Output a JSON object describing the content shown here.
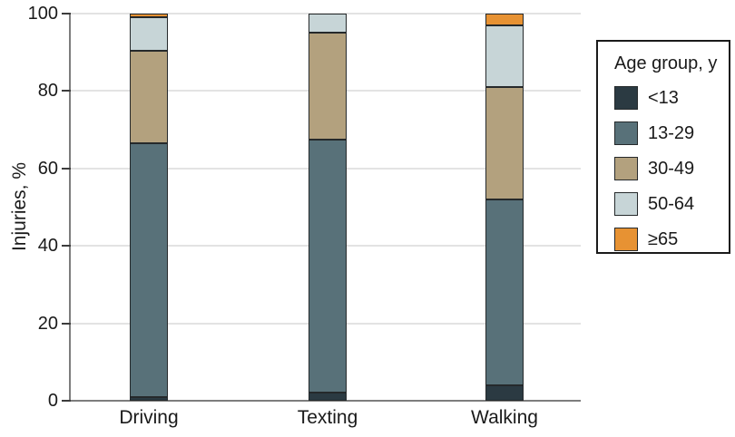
{
  "chart_data": {
    "type": "bar",
    "subtype": "stacked-vertical",
    "title": "",
    "ylabel": "Injuries, %",
    "xlabel": "",
    "ylim": [
      0,
      100
    ],
    "yticks": [
      0,
      20,
      40,
      60,
      80,
      100
    ],
    "grid": "horizontal",
    "categories": [
      "Driving",
      "Texting",
      "Walking"
    ],
    "series": [
      {
        "name": "<13",
        "color": "#2b3a42",
        "values": [
          1,
          2,
          4
        ]
      },
      {
        "name": "13-29",
        "color": "#587179",
        "values": [
          65.5,
          65.5,
          48
        ]
      },
      {
        "name": "30-49",
        "color": "#b3a17e",
        "values": [
          24,
          27.5,
          29
        ]
      },
      {
        "name": "50-64",
        "color": "#c7d5d7",
        "values": [
          8.5,
          5,
          16
        ]
      },
      {
        "name": "≥65",
        "color": "#e79233",
        "values": [
          1,
          0,
          3
        ]
      }
    ],
    "legend": {
      "title": "Age group, y",
      "position": "right"
    },
    "colors": {
      "axis": "#7d7d7d",
      "gridline": "#e3e3e3",
      "segment_border": "#25292b",
      "text": "#1a1a1a",
      "background": "#ffffff"
    }
  }
}
